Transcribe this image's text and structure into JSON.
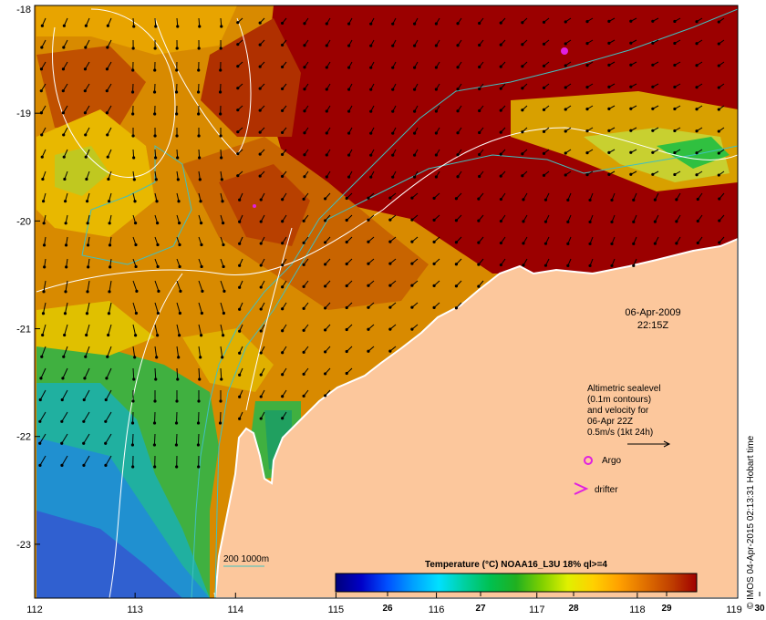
{
  "map": {
    "lon_range": [
      112,
      119
    ],
    "lat_range": [
      -23.5,
      -18
    ],
    "x_ticks": [
      112,
      113,
      114,
      115,
      116,
      117,
      118,
      119
    ],
    "y_ticks": [
      -18,
      -19,
      -20,
      -21,
      -22,
      -23
    ]
  },
  "date_label": {
    "date": "06-Apr-2009",
    "time": "22:15Z"
  },
  "legend": {
    "line1": "Altimetric sealevel",
    "line2": "(0.1m contours)",
    "line3": "and velocity for",
    "line4": "06-Apr 22Z",
    "line5": "0.5m/s (1kt 24h)",
    "argo": "Argo",
    "drifter": "drifter"
  },
  "isobath_label": "200  1000m",
  "colorbar": {
    "title": "Temperature (°C) NOAA16_L3U 18% ql>=4",
    "ticks": [
      "26",
      "27",
      "28",
      "29",
      "30"
    ],
    "colors": [
      "#00007a",
      "#0000c8",
      "#0050ff",
      "#00a0ff",
      "#00e0ff",
      "#00d0a0",
      "#00c050",
      "#20b020",
      "#80d000",
      "#e0f000",
      "#ffd000",
      "#ffa000",
      "#e07000",
      "#c04000",
      "#a00000"
    ]
  },
  "credit": "© IMOS 04-Apr-2015 02:13:31 Hobart time",
  "colors": {
    "land": "#fcc79c",
    "warm_dark": "#9b0000",
    "warm_mid": "#c86400",
    "warm_orange": "#e69600",
    "yellow": "#f0c400",
    "green": "#30b030",
    "cyan": "#20b0d0",
    "blue": "#2060d0",
    "contour": "#ffffff",
    "isobath": "#40c0c0",
    "argo": "#e020e0"
  }
}
